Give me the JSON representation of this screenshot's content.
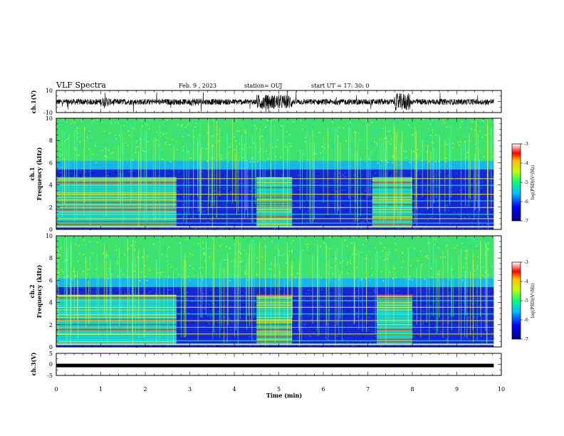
{
  "header": {
    "title": "VLF Spectra",
    "date": "Feb. 9  , 2023",
    "station": "station= OUJ",
    "start": "start  UT  =   17: 30: 0"
  },
  "chart_data": [
    {
      "type": "line",
      "name": "ch1-waveform",
      "ylabel": "ch.1(V)",
      "ylim": [
        -10,
        10
      ],
      "ytick_labels": [
        "10",
        "-10"
      ],
      "xlim": [
        0,
        10
      ],
      "bursts_min": [
        [
          4.5,
          5.3,
          2.2
        ],
        [
          7.6,
          7.95,
          2.6
        ],
        [
          1.0,
          1.2,
          1.4
        ],
        [
          3.0,
          3.3,
          1.2
        ]
      ]
    },
    {
      "type": "heatmap",
      "name": "ch1-spectrogram",
      "ylabel": "ch.1\nFrequency  (kHz)",
      "ylim": [
        0,
        10
      ],
      "xlim": [
        0,
        9.83
      ],
      "ytick_labels": [
        "0",
        "2",
        "4",
        "6",
        "8",
        "10"
      ],
      "colorbar": {
        "label": "log(PSD)(V²/Hz)",
        "range": [
          -7,
          -3
        ],
        "tick_labels": [
          "-3",
          "-4",
          "-5",
          "-6",
          "-7"
        ]
      },
      "bands_kHz": [
        0.6,
        1.0,
        1.4,
        2.0,
        2.6,
        3.2,
        4.0,
        4.6
      ],
      "events_min": [
        [
          0.0,
          2.7
        ],
        [
          4.5,
          5.3
        ],
        [
          7.1,
          8.0
        ]
      ],
      "event_top_kHz": 4.7
    },
    {
      "type": "heatmap",
      "name": "ch2-spectrogram",
      "ylabel": "ch.2\nFrequency  (kHz)",
      "ylim": [
        0,
        10
      ],
      "xlim": [
        0,
        9.83
      ],
      "ytick_labels": [
        "0",
        "2",
        "4",
        "6",
        "8",
        "10"
      ],
      "colorbar": {
        "label": "log(PSD)(V²/Hz)",
        "range": [
          -7,
          -3
        ],
        "tick_labels": [
          "-3",
          "-4",
          "-5",
          "-6",
          "-7"
        ]
      },
      "bands_kHz": [
        0.6,
        1.2,
        1.8,
        2.4,
        3.0,
        3.6,
        4.2,
        4.6
      ],
      "events_min": [
        [
          0.0,
          2.7
        ],
        [
          4.5,
          5.3
        ],
        [
          7.2,
          8.0
        ]
      ],
      "event_top_kHz": 4.7
    },
    {
      "type": "line",
      "name": "ch3-waveform",
      "ylabel": "ch.3(V)",
      "ylim": [
        -5,
        5
      ],
      "ytick_labels": [
        "5",
        "0",
        "-5"
      ],
      "xlim": [
        0,
        10
      ],
      "level_V": -0.5
    }
  ],
  "xaxis": {
    "label": "Time  (min)",
    "range": [
      0,
      10
    ],
    "tick_labels": [
      "0",
      "1",
      "2",
      "3",
      "4",
      "5",
      "6",
      "7",
      "8",
      "9",
      "10"
    ]
  }
}
